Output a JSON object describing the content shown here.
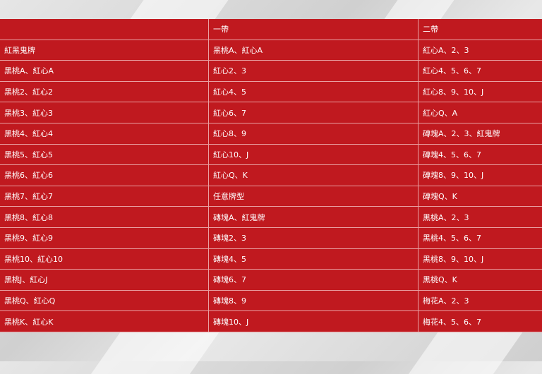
{
  "table": {
    "headers": [
      "",
      "一帶",
      "二帶"
    ],
    "rows": [
      [
        "紅黑鬼牌",
        "黑桃A、紅心A",
        "紅心A、2、3"
      ],
      [
        "黑桃A、紅心A",
        "紅心2、3",
        "紅心4、5、6、7"
      ],
      [
        "黑桃2、紅心2",
        "紅心4、5",
        "紅心8、9、10、J"
      ],
      [
        "黑桃3、紅心3",
        "紅心6、7",
        "紅心Q、A"
      ],
      [
        "黑桃4、紅心4",
        "紅心8、9",
        "磚塊A、2、3、紅鬼牌"
      ],
      [
        "黑桃5、紅心5",
        "紅心10、J",
        "磚塊4、5、6、7"
      ],
      [
        "黑桃6、紅心6",
        "紅心Q、K",
        "磚塊8、9、10、J"
      ],
      [
        "黑桃7、紅心7",
        "任意牌型",
        "磚塊Q、K"
      ],
      [
        "黑桃8、紅心8",
        "磚塊A、紅鬼牌",
        "黑桃A、2、3"
      ],
      [
        "黑桃9、紅心9",
        "磚塊2、3",
        "黑桃4、5、6、7"
      ],
      [
        "黑桃10、紅心10",
        "磚塊4、5",
        "黑桃8、9、10、J"
      ],
      [
        "黑桃J、紅心J",
        "磚塊6、7",
        "黑桃Q、K"
      ],
      [
        "黑桃Q、紅心Q",
        "磚塊8、9",
        "梅花A、2、3"
      ],
      [
        "黑桃K、紅心K",
        "磚塊10、J",
        "梅花4、5、6、7"
      ]
    ]
  },
  "colors": {
    "table_bg": "#c0191f",
    "text": "#ffffff",
    "page_bg": "#d9d9d9"
  }
}
